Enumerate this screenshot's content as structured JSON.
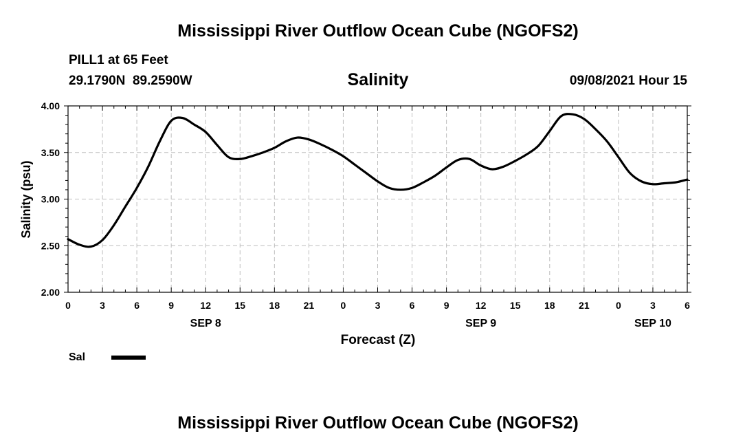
{
  "header": {
    "title": "Mississippi River Outflow Ocean Cube (NGOFS2)",
    "station": "PILL1 at 65 Feet",
    "coords": "29.1790N  89.2590W",
    "subtitle": "Salinity",
    "timestamp": "09/08/2021 Hour 15"
  },
  "footer": {
    "title": "Mississippi River Outflow Ocean Cube (NGOFS2)"
  },
  "legend": {
    "label": "Sal",
    "color": "#000000",
    "placement": "bottom-left"
  },
  "chart_data": {
    "type": "line",
    "title": "Salinity",
    "xlabel": "Forecast (Z)",
    "ylabel": "Salinity (psu)",
    "ylim": [
      2.0,
      4.0
    ],
    "xlim": [
      0,
      54
    ],
    "grid": true,
    "x_ticks": [
      "0",
      "3",
      "6",
      "9",
      "12",
      "15",
      "18",
      "21",
      "0",
      "3",
      "6",
      "9",
      "12",
      "15",
      "18",
      "21",
      "0",
      "3",
      "6"
    ],
    "y_ticks": [
      "2.00",
      "2.50",
      "3.00",
      "3.50",
      "4.00"
    ],
    "day_labels": [
      {
        "label": "SEP 8",
        "hour": 12
      },
      {
        "label": "SEP 9",
        "hour": 36
      },
      {
        "label": "SEP 10",
        "hour": 51
      }
    ],
    "series": [
      {
        "name": "Sal",
        "color": "#000000",
        "x": [
          0,
          1,
          2,
          3,
          4,
          5,
          6,
          7,
          8,
          9,
          10,
          11,
          12,
          13,
          14,
          15,
          16,
          17,
          18,
          19,
          20,
          21,
          22,
          23,
          24,
          25,
          26,
          27,
          28,
          29,
          30,
          31,
          32,
          33,
          34,
          35,
          36,
          37,
          38,
          39,
          40,
          41,
          42,
          43,
          44,
          45,
          46,
          47,
          48,
          49,
          50,
          51,
          52,
          53,
          54
        ],
        "y": [
          2.57,
          2.51,
          2.49,
          2.56,
          2.72,
          2.92,
          3.12,
          3.35,
          3.62,
          3.84,
          3.87,
          3.8,
          3.72,
          3.58,
          3.45,
          3.43,
          3.46,
          3.5,
          3.55,
          3.62,
          3.66,
          3.64,
          3.59,
          3.53,
          3.46,
          3.37,
          3.28,
          3.19,
          3.12,
          3.1,
          3.12,
          3.18,
          3.25,
          3.34,
          3.42,
          3.43,
          3.36,
          3.32,
          3.35,
          3.41,
          3.48,
          3.57,
          3.73,
          3.89,
          3.91,
          3.86,
          3.75,
          3.62,
          3.45,
          3.28,
          3.19,
          3.16,
          3.17,
          3.18,
          3.21
        ]
      }
    ]
  }
}
